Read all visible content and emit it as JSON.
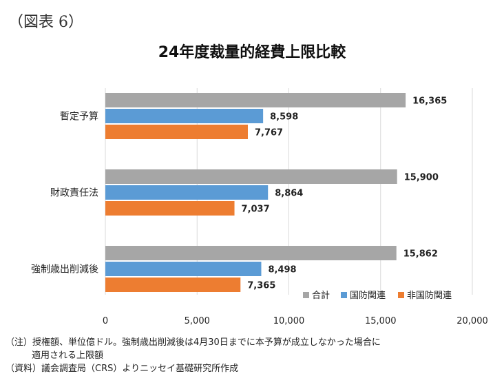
{
  "figure_label": "（図表 6）",
  "notes": {
    "line1": "（注）授権額、単位億ドル。強制歳出削減後は4月30日までに本予算が成立しなかった場合に",
    "line2": "適用される上限額",
    "source": "（資料）議会調査局（CRS）よりニッセイ基礎研究所作成"
  },
  "chart_data": {
    "type": "bar",
    "orientation": "horizontal",
    "title": "24年度裁量的経費上限比較",
    "categories": [
      "暫定予算",
      "財政責任法",
      "強制歳出削減後"
    ],
    "series": [
      {
        "name": "合計",
        "color": "#a6a6a6",
        "values": [
          16365,
          15900,
          15862
        ],
        "labels": [
          "16,365",
          "15,900",
          "15,862"
        ]
      },
      {
        "name": "国防関連",
        "color": "#5b9bd5",
        "values": [
          8598,
          8864,
          8498
        ],
        "labels": [
          "8,598",
          "8,864",
          "8,498"
        ]
      },
      {
        "name": "非国防関連",
        "color": "#ed7d31",
        "values": [
          7767,
          7037,
          7365
        ],
        "labels": [
          "7,767",
          "7,037",
          "7,365"
        ]
      }
    ],
    "xlim": [
      0,
      20000
    ],
    "x_ticks": [
      0,
      5000,
      10000,
      15000,
      20000
    ],
    "x_tick_labels": [
      "0",
      "5,000",
      "10,000",
      "15,000",
      "20,000"
    ],
    "grid": true,
    "legend_position": "bottom-right"
  }
}
